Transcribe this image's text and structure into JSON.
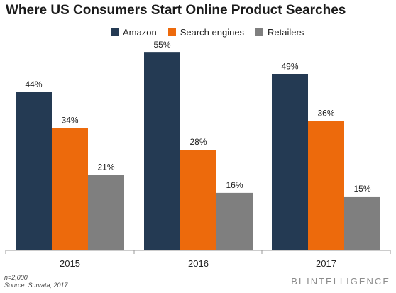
{
  "chart_data": {
    "type": "bar",
    "title": "Where US Consumers Start Online Product Searches",
    "categories": [
      "2015",
      "2016",
      "2017"
    ],
    "series": [
      {
        "name": "Amazon",
        "values": [
          44,
          55,
          49
        ],
        "labels": [
          "44%",
          "55%",
          "49%"
        ],
        "color": "#243a53"
      },
      {
        "name": "Search engines",
        "values": [
          34,
          28,
          36
        ],
        "labels": [
          "34%",
          "28%",
          "36%"
        ],
        "color": "#ed6a0c"
      },
      {
        "name": "Retailers",
        "values": [
          21,
          16,
          15
        ],
        "labels": [
          "21%",
          "16%",
          "15%"
        ],
        "color": "#7f7f7f"
      }
    ],
    "unit": "%",
    "legend_position": "top",
    "grid": false,
    "ylim": [
      0,
      55
    ]
  },
  "footer": {
    "note": "n=2,000",
    "source": "Source: Survata, 2017",
    "brand": "BI INTELLIGENCE"
  }
}
